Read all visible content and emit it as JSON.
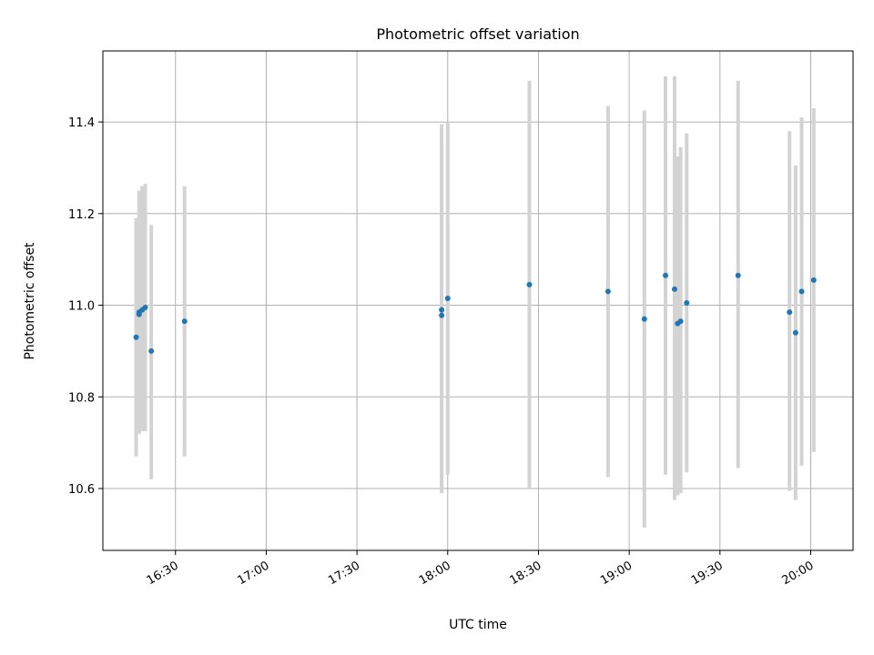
{
  "chart_data": {
    "type": "scatter",
    "title": "Photometric offset variation",
    "xlabel": "UTC time",
    "ylabel": "Photometric offset",
    "xlim": [
      "16:06",
      "20:14"
    ],
    "ylim": [
      10.465,
      11.555
    ],
    "x_ticks": [
      "16:30",
      "17:00",
      "17:30",
      "18:00",
      "18:30",
      "19:00",
      "19:30",
      "20:00"
    ],
    "y_ticks": [
      10.6,
      10.8,
      11.0,
      11.2,
      11.4
    ],
    "y_tick_labels": [
      "10.6",
      "10.8",
      "11.0",
      "11.2",
      "11.4"
    ],
    "grid": true,
    "marker_color": "#1f77b4",
    "errorbar_color": "#d3d3d3",
    "points": [
      {
        "time": "16:17",
        "y": 10.93,
        "ylow": 10.67,
        "yhigh": 11.19
      },
      {
        "time": "16:18",
        "y": 10.98,
        "ylow": 10.72,
        "yhigh": 11.24
      },
      {
        "time": "16:18",
        "y": 10.985,
        "ylow": 10.72,
        "yhigh": 11.25
      },
      {
        "time": "16:19",
        "y": 10.99,
        "ylow": 10.725,
        "yhigh": 11.26
      },
      {
        "time": "16:20",
        "y": 10.995,
        "ylow": 10.725,
        "yhigh": 11.265
      },
      {
        "time": "16:22",
        "y": 10.9,
        "ylow": 10.62,
        "yhigh": 11.175
      },
      {
        "time": "16:33",
        "y": 10.965,
        "ylow": 10.67,
        "yhigh": 11.26
      },
      {
        "time": "17:58",
        "y": 10.99,
        "ylow": 10.6,
        "yhigh": 11.395
      },
      {
        "time": "17:58",
        "y": 10.978,
        "ylow": 10.59,
        "yhigh": 11.36
      },
      {
        "time": "18:00",
        "y": 11.015,
        "ylow": 10.63,
        "yhigh": 11.4
      },
      {
        "time": "18:27",
        "y": 11.045,
        "ylow": 10.6,
        "yhigh": 11.49
      },
      {
        "time": "18:53",
        "y": 11.03,
        "ylow": 10.625,
        "yhigh": 11.435
      },
      {
        "time": "19:05",
        "y": 10.97,
        "ylow": 10.515,
        "yhigh": 11.425
      },
      {
        "time": "19:12",
        "y": 11.065,
        "ylow": 10.63,
        "yhigh": 11.5
      },
      {
        "time": "19:15",
        "y": 11.035,
        "ylow": 10.575,
        "yhigh": 11.5
      },
      {
        "time": "19:16",
        "y": 10.96,
        "ylow": 10.585,
        "yhigh": 11.325
      },
      {
        "time": "19:17",
        "y": 10.965,
        "ylow": 10.59,
        "yhigh": 11.345
      },
      {
        "time": "19:19",
        "y": 11.005,
        "ylow": 10.635,
        "yhigh": 11.375
      },
      {
        "time": "19:36",
        "y": 11.065,
        "ylow": 10.645,
        "yhigh": 11.49
      },
      {
        "time": "19:53",
        "y": 10.985,
        "ylow": 10.595,
        "yhigh": 11.38
      },
      {
        "time": "19:55",
        "y": 10.94,
        "ylow": 10.575,
        "yhigh": 11.305
      },
      {
        "time": "19:57",
        "y": 11.03,
        "ylow": 10.65,
        "yhigh": 11.41
      },
      {
        "time": "20:01",
        "y": 11.055,
        "ylow": 10.68,
        "yhigh": 11.43
      }
    ]
  }
}
